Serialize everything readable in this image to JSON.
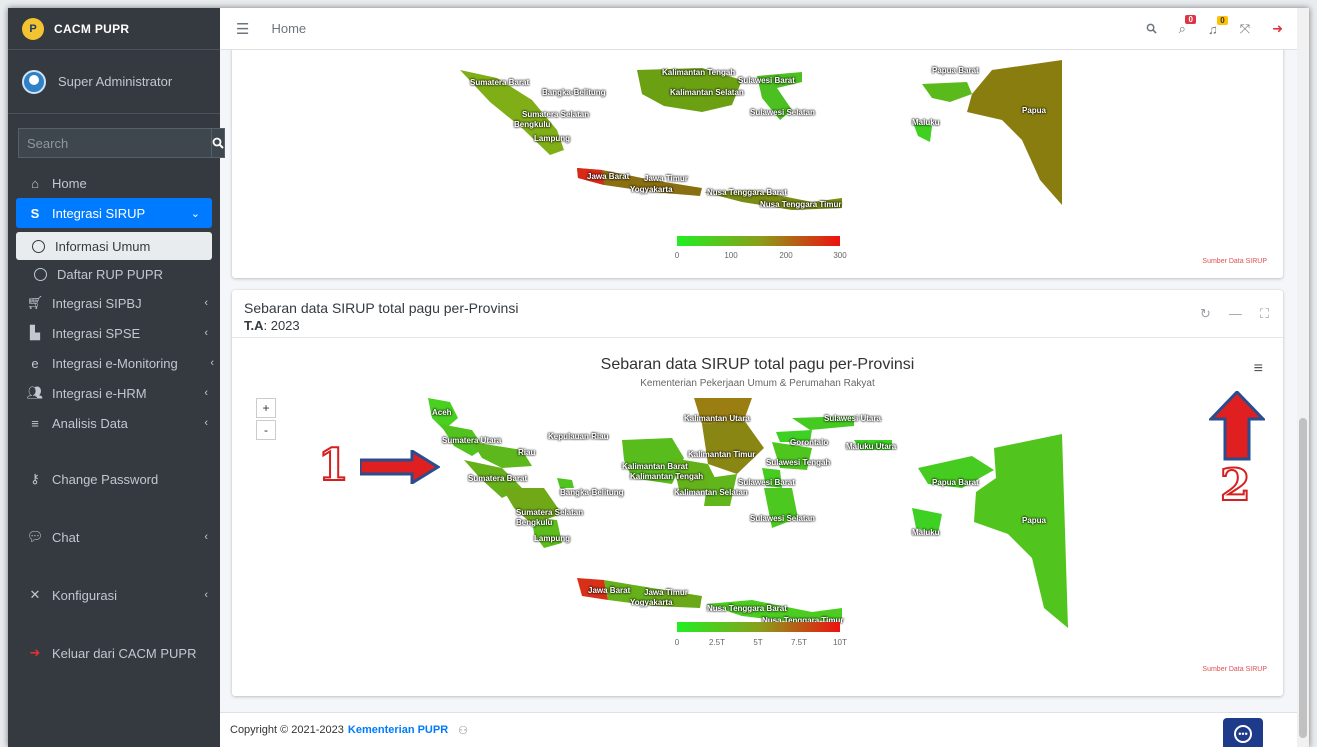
{
  "brand": {
    "name": "CACM PUPR",
    "logo_text": "P"
  },
  "user": {
    "name": "Super Administrator"
  },
  "search": {
    "placeholder": "Search"
  },
  "sidebar": {
    "items": [
      {
        "label": "Home",
        "icon": "home-icon"
      },
      {
        "label": "Integrasi SIRUP",
        "icon": "s-icon"
      },
      {
        "label": "Informasi Umum"
      },
      {
        "label": "Daftar RUP PUPR"
      },
      {
        "label": "Integrasi SIPBJ",
        "icon": "cart-icon"
      },
      {
        "label": "Integrasi SPSE",
        "icon": "building-icon"
      },
      {
        "label": "Integrasi e-Monitoring",
        "icon": "ie-icon"
      },
      {
        "label": "Integrasi e-HRM",
        "icon": "users-icon"
      },
      {
        "label": "Analisis Data",
        "icon": "database-icon"
      },
      {
        "label": "Change Password",
        "icon": "key-icon"
      },
      {
        "label": "Chat",
        "icon": "chat-icon"
      },
      {
        "label": "Konfigurasi",
        "icon": "tools-icon"
      },
      {
        "label": "Keluar dari CACM PUPR",
        "icon": "logout-icon"
      }
    ]
  },
  "topbar": {
    "breadcrumb": "Home",
    "badges": {
      "messages": "0",
      "notifications": "0"
    },
    "colors": {
      "messages_badge": "#dc3545",
      "notifications_badge": "#ffc107"
    }
  },
  "card1": {
    "legend_ticks": [
      "0",
      "100",
      "200",
      "300"
    ],
    "source": "Sumber Data SIRUP",
    "map_labels": [
      "Sumatera Barat",
      "Bangka-Belitung",
      "Sumatera Selatan",
      "Bengkulu",
      "Lampung",
      "Kalimantan Tengah",
      "Kalimantan Selatan",
      "Sulawesi Barat",
      "Sulawesi Selatan",
      "Papua Barat",
      "Papua",
      "Maluku",
      "Jawa Barat",
      "Jawa Timur",
      "Yogyakarta",
      "Nusa Tenggara Barat",
      "Nusa Tenggara Timur"
    ]
  },
  "card2": {
    "header_title": "Sebaran data SIRUP total pagu per-Provinsi",
    "header_ta_label": "T.A",
    "header_ta_value": ": 2023",
    "chart_title": "Sebaran data SIRUP total pagu per-Provinsi",
    "chart_subtitle": "Kementerian Pekerjaan Umum & Perumahan Rakyat",
    "zoom_in": "+",
    "zoom_out": "-",
    "legend_ticks": [
      "0",
      "2.5T",
      "5T",
      "7.5T",
      "10T"
    ],
    "source": "Sumber Data SIRUP",
    "map_labels": [
      "Aceh",
      "Sumatera Utara",
      "Riau",
      "Kepulauan Riau",
      "Sumatera Barat",
      "Bangka-Belitung",
      "Sumatera Selatan",
      "Bengkulu",
      "Lampung",
      "Kalimantan Utara",
      "Kalimantan Timur",
      "Kalimantan Barat",
      "Kalimantan Tengah",
      "Kalimantan Selatan",
      "Sulawesi Utara",
      "Gorontalo",
      "Sulawesi Tengah",
      "Sulawesi Barat",
      "Sulawesi Selatan",
      "Maluku Utara",
      "Papua Barat",
      "Papua",
      "Maluku",
      "Jawa Barat",
      "Jawa Timur",
      "Yogyakarta",
      "Nusa Tenggara Barat",
      "Nusa Tenggara Timur"
    ]
  },
  "footer": {
    "copyright": "Copyright © 2021-2023",
    "link": "Kementerian PUPR"
  },
  "annotations": {
    "one": "1",
    "two": "2"
  }
}
